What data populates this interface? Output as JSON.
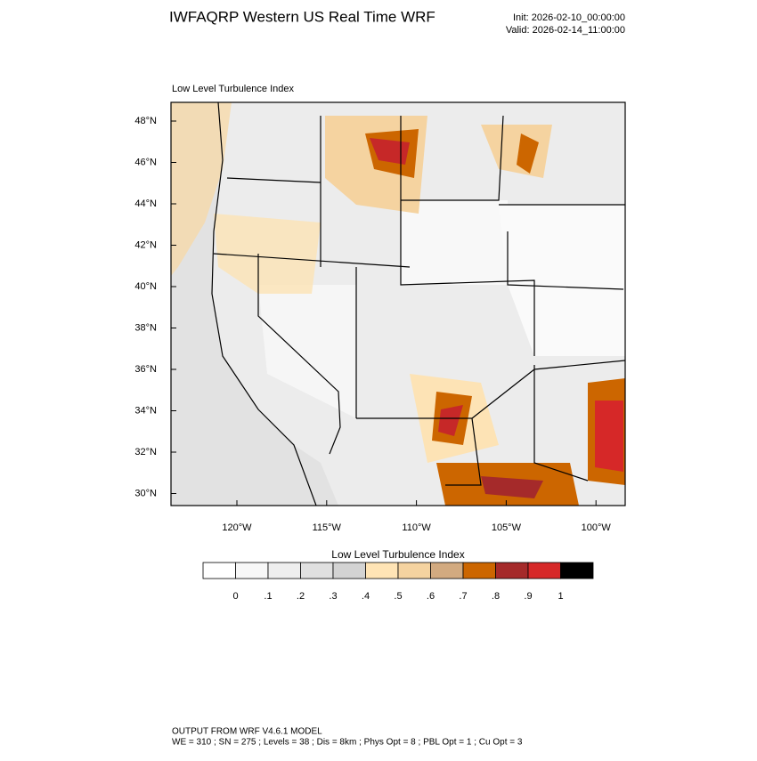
{
  "header": {
    "title": "IWFAQRP Western US Real Time WRF",
    "init": "Init: 2026-02-10_00:00:00",
    "valid": "Valid: 2026-02-14_11:00:00"
  },
  "map": {
    "subtitle": "Low Level Turbulence Index",
    "lat_labels": [
      "48°N",
      "46°N",
      "44°N",
      "42°N",
      "40°N",
      "38°N",
      "36°N",
      "34°N",
      "32°N",
      "30°N"
    ],
    "lon_labels": [
      "120°W",
      "115°W",
      "110°W",
      "105°W",
      "100°W"
    ]
  },
  "colorbar": {
    "title": "Low Level Turbulence Index",
    "labels": [
      "0",
      ".1",
      ".2",
      ".3",
      ".4",
      ".5",
      ".6",
      ".7",
      ".8",
      ".9",
      "1"
    ],
    "colors": [
      "#ffffff",
      "#f7f7f7",
      "#eeeeee",
      "#e0e0e0",
      "#d3d3d3",
      "#ffe4b5",
      "#f5d3a0",
      "#d2aa80",
      "#cc6600",
      "#a52a2a",
      "#d62828",
      "#000000"
    ]
  },
  "footer": {
    "line1": "OUTPUT FROM WRF V4.6.1 MODEL",
    "line2": "WE = 310 ; SN = 275 ; Levels = 38 ; Dis = 8km ; Phys Opt = 8 ; PBL Opt = 1 ; Cu Opt = 3"
  }
}
